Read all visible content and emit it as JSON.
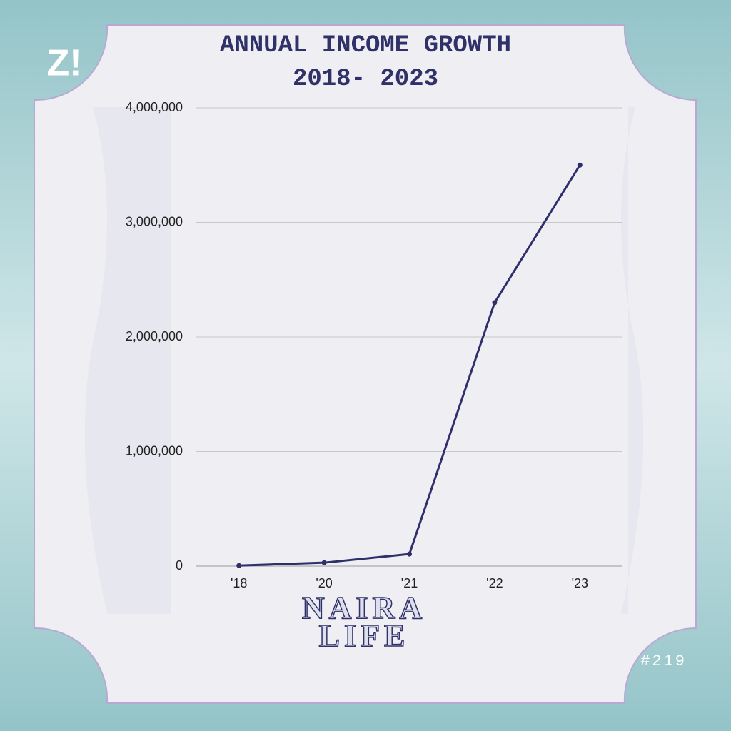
{
  "chart_data": {
    "type": "line",
    "title": "ANNUAL INCOME GROWTH",
    "subtitle": "2018- 2023",
    "categories": [
      "'18",
      "'20",
      "'21",
      "'22",
      "'23"
    ],
    "series": [
      {
        "color": "#2e2f6b",
        "values": [
          5000,
          30000,
          105000,
          2300000,
          3500000
        ]
      }
    ],
    "ylim": [
      0,
      4000000
    ],
    "yticks": [
      0,
      {
        "value": 1000000,
        "label": "1,000,000"
      },
      {
        "value": 2000000,
        "label": "2,000,000"
      },
      {
        "value": 3000000,
        "label": "3,000,000"
      },
      {
        "value": 4000000,
        "label": "4,000,000"
      }
    ],
    "grid": true,
    "logo": "Z!",
    "brand": [
      "NAIRA",
      "LIFE"
    ],
    "issue": "#219"
  }
}
